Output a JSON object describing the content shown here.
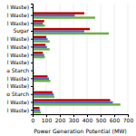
{
  "chart_data": {
    "type": "bar",
    "orientation": "horizontal",
    "categories": [
      "l Waste)",
      "l Waste)",
      "l Waste)",
      "Sugar",
      "l Waste)",
      "l Waste)",
      "l Waste)",
      "l Waste)",
      "a Starch",
      "l Waste)",
      "l Waste)",
      "o Starch",
      "l Waste)",
      "l Waste)"
    ],
    "series": [
      {
        "color": "#70AD47",
        "values": [
          3,
          460,
          90,
          560,
          125,
          125,
          90,
          3,
          12,
          130,
          12,
          160,
          645,
          60
        ]
      },
      {
        "color": "#4472C4",
        "values": [
          3,
          310,
          75,
          380,
          110,
          105,
          85,
          3,
          8,
          120,
          8,
          155,
          590,
          55
        ]
      },
      {
        "color": "#C00000",
        "values": [
          3,
          380,
          85,
          420,
          100,
          95,
          75,
          3,
          8,
          110,
          8,
          145,
          570,
          50
        ]
      }
    ],
    "xlabel": "Power Generation Potential (MW)",
    "xlim": [
      0,
      700
    ],
    "xticks": [
      0,
      100,
      200,
      300,
      400,
      500,
      600,
      700
    ],
    "grid": true
  }
}
